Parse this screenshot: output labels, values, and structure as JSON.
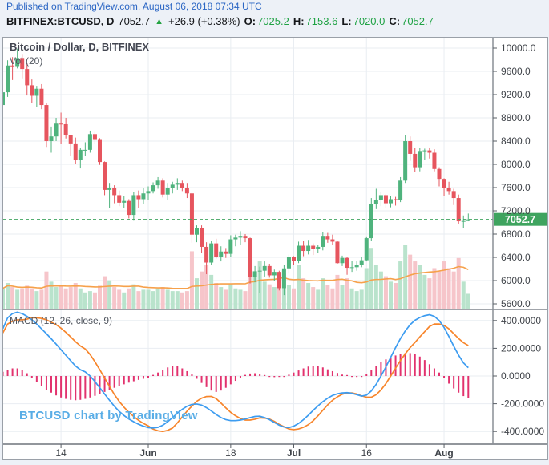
{
  "header": {
    "published": "Published on TradingView.com, August 06, 2018 07:34 UTC",
    "symbol": "BITFINEX:BTCUSD, D",
    "last_price": "7052.7",
    "direction_icon": "▲",
    "change": "+26.9 (+0.38%)",
    "ohlc": [
      {
        "label": "O:",
        "value": "7025.2"
      },
      {
        "label": "H:",
        "value": "7153.6"
      },
      {
        "label": "L:",
        "value": "7020.0"
      },
      {
        "label": "C:",
        "value": "7052.7"
      }
    ]
  },
  "chart": {
    "title": "Bitcoin / Dollar, D, BITFINEX",
    "vol_label": "Vol (20)",
    "macd_label": "MACD (12, 26, close, 9)",
    "watermark": "BTCUSD chart by TradingView"
  },
  "chart_data": {
    "type": "candlestick",
    "title": "Bitcoin / Dollar, D, BITFINEX",
    "exchange": "BITFINEX",
    "interval": "D",
    "last_price": 7052.7,
    "price_axis": {
      "ticks": [
        10000,
        9600,
        9200,
        8800,
        8400,
        8000,
        7600,
        7200,
        6800,
        6400,
        6000,
        5600
      ],
      "ylim": [
        5500,
        10180
      ],
      "format_decimals": 1
    },
    "macd_axis": {
      "ticks": [
        400,
        200,
        0,
        -200,
        -400
      ],
      "ylim": [
        -490,
        460
      ],
      "format_decimals": 4
    },
    "time_ticks": [
      {
        "day": 12,
        "label": "14",
        "bold": false
      },
      {
        "day": 30,
        "label": "Jun",
        "bold": true
      },
      {
        "day": 47,
        "label": "18",
        "bold": false
      },
      {
        "day": 60,
        "label": "Jul",
        "bold": true
      },
      {
        "day": 75,
        "label": "16",
        "bold": false
      },
      {
        "day": 91,
        "label": "Aug",
        "bold": true
      }
    ],
    "candles": [
      [
        9020,
        9280,
        8920,
        9240
      ],
      [
        9240,
        9790,
        9160,
        9700
      ],
      [
        9700,
        9845,
        9450,
        9690
      ],
      [
        9690,
        9990,
        9650,
        9830
      ],
      [
        9830,
        9900,
        9480,
        9640
      ],
      [
        9640,
        9750,
        9185,
        9360
      ],
      [
        9360,
        9460,
        9050,
        9180
      ],
      [
        9180,
        9350,
        8980,
        9300
      ],
      [
        9300,
        9380,
        8950,
        9020
      ],
      [
        9020,
        9060,
        8300,
        8400
      ],
      [
        8400,
        8650,
        8200,
        8480
      ],
      [
        8480,
        8800,
        8400,
        8700
      ],
      [
        8700,
        8890,
        8355,
        8690
      ],
      [
        8690,
        8800,
        8445,
        8500
      ],
      [
        8500,
        8510,
        8150,
        8360
      ],
      [
        8360,
        8460,
        8010,
        8080
      ],
      [
        8080,
        8290,
        7930,
        8250
      ],
      [
        8250,
        8380,
        8150,
        8250
      ],
      [
        8250,
        8580,
        8200,
        8520
      ],
      [
        8520,
        8560,
        8350,
        8420
      ],
      [
        8420,
        8450,
        7990,
        8040
      ],
      [
        8040,
        8050,
        7470,
        7560
      ],
      [
        7560,
        7680,
        7250,
        7590
      ],
      [
        7590,
        7640,
        7330,
        7470
      ],
      [
        7470,
        7550,
        7280,
        7340
      ],
      [
        7340,
        7450,
        7250,
        7370
      ],
      [
        7370,
        7400,
        7070,
        7130
      ],
      [
        7130,
        7520,
        7030,
        7470
      ],
      [
        7470,
        7550,
        7250,
        7400
      ],
      [
        7400,
        7600,
        7320,
        7500
      ],
      [
        7500,
        7620,
        7380,
        7540
      ],
      [
        7540,
        7690,
        7500,
        7640
      ],
      [
        7640,
        7780,
        7580,
        7720
      ],
      [
        7720,
        7760,
        7430,
        7480
      ],
      [
        7480,
        7680,
        7390,
        7600
      ],
      [
        7600,
        7700,
        7500,
        7650
      ],
      [
        7650,
        7760,
        7560,
        7680
      ],
      [
        7680,
        7720,
        7540,
        7600
      ],
      [
        7600,
        7680,
        7420,
        7500
      ],
      [
        7500,
        7510,
        6650,
        6790
      ],
      [
        6790,
        6950,
        6660,
        6900
      ],
      [
        6900,
        6950,
        6480,
        6580
      ],
      [
        6580,
        6660,
        6110,
        6310
      ],
      [
        6310,
        6690,
        6270,
        6640
      ],
      [
        6640,
        6720,
        6380,
        6400
      ],
      [
        6400,
        6590,
        6330,
        6500
      ],
      [
        6500,
        6560,
        6390,
        6460
      ],
      [
        6460,
        6780,
        6410,
        6710
      ],
      [
        6710,
        6790,
        6590,
        6740
      ],
      [
        6740,
        6850,
        6620,
        6770
      ],
      [
        6770,
        6800,
        6660,
        6730
      ],
      [
        6730,
        6740,
        5950,
        6060
      ],
      [
        6060,
        6250,
        5970,
        6160
      ],
      [
        6160,
        6240,
        5780,
        6170
      ],
      [
        6170,
        6330,
        6070,
        6250
      ],
      [
        6250,
        6290,
        6050,
        6090
      ],
      [
        6090,
        6190,
        5990,
        6150
      ],
      [
        6150,
        6170,
        5830,
        5870
      ],
      [
        5870,
        6270,
        5750,
        6210
      ],
      [
        6210,
        6450,
        6120,
        6400
      ],
      [
        6400,
        6420,
        6270,
        6340
      ],
      [
        6340,
        6670,
        6300,
        6600
      ],
      [
        6600,
        6680,
        6420,
        6510
      ],
      [
        6510,
        6700,
        6450,
        6600
      ],
      [
        6600,
        6640,
        6440,
        6550
      ],
      [
        6550,
        6620,
        6470,
        6580
      ],
      [
        6580,
        6830,
        6520,
        6770
      ],
      [
        6770,
        6820,
        6650,
        6710
      ],
      [
        6710,
        6790,
        6610,
        6670
      ],
      [
        6670,
        6680,
        6290,
        6300
      ],
      [
        6300,
        6430,
        6250,
        6390
      ],
      [
        6390,
        6400,
        6100,
        6220
      ],
      [
        6220,
        6340,
        6150,
        6230
      ],
      [
        6230,
        6330,
        6170,
        6270
      ],
      [
        6270,
        6400,
        6230,
        6350
      ],
      [
        6350,
        6760,
        6330,
        6730
      ],
      [
        6730,
        7420,
        6680,
        7320
      ],
      [
        7320,
        7580,
        7230,
        7380
      ],
      [
        7380,
        7530,
        7280,
        7470
      ],
      [
        7470,
        7490,
        7250,
        7330
      ],
      [
        7330,
        7450,
        7260,
        7400
      ],
      [
        7400,
        7440,
        7290,
        7390
      ],
      [
        7390,
        7780,
        7350,
        7720
      ],
      [
        7720,
        8500,
        7680,
        8400
      ],
      [
        8400,
        8480,
        8060,
        8180
      ],
      [
        8180,
        8280,
        7870,
        7950
      ],
      [
        7950,
        8290,
        7880,
        8230
      ],
      [
        8230,
        8270,
        8080,
        8240
      ],
      [
        8240,
        8290,
        8100,
        8200
      ],
      [
        8200,
        8260,
        7880,
        7920
      ],
      [
        7920,
        7950,
        7620,
        7750
      ],
      [
        7750,
        7760,
        7450,
        7600
      ],
      [
        7600,
        7700,
        7480,
        7540
      ],
      [
        7540,
        7580,
        7300,
        7420
      ],
      [
        7420,
        7480,
        6980,
        7020
      ],
      [
        7020,
        7120,
        6900,
        7025
      ],
      [
        7025.2,
        7153.6,
        7020.0,
        7052.7
      ]
    ],
    "volume": [
      30,
      38,
      32,
      28,
      30,
      34,
      30,
      26,
      28,
      55,
      40,
      32,
      35,
      30,
      32,
      38,
      30,
      24,
      26,
      24,
      34,
      48,
      42,
      32,
      28,
      24,
      30,
      36,
      26,
      28,
      28,
      26,
      30,
      32,
      28,
      26,
      26,
      24,
      26,
      85,
      45,
      55,
      65,
      50,
      38,
      32,
      28,
      36,
      30,
      28,
      26,
      75,
      48,
      70,
      40,
      36,
      32,
      50,
      52,
      35,
      30,
      65,
      45,
      38,
      32,
      28,
      45,
      35,
      30,
      50,
      35,
      45,
      30,
      26,
      28,
      60,
      90,
      65,
      55,
      48,
      40,
      38,
      70,
      95,
      80,
      70,
      65,
      50,
      45,
      60,
      55,
      70,
      60,
      55,
      75,
      40,
      22
    ],
    "vol_ma_length": 20,
    "macd": [
      340,
      420,
      450,
      460,
      450,
      430,
      405,
      375,
      340,
      305,
      268,
      230,
      190,
      150,
      110,
      72,
      45,
      30,
      0,
      -40,
      -85,
      -130,
      -175,
      -218,
      -255,
      -285,
      -310,
      -330,
      -348,
      -362,
      -372,
      -375,
      -370,
      -355,
      -330,
      -300,
      -268,
      -240,
      -218,
      -205,
      -202,
      -210,
      -228,
      -252,
      -278,
      -300,
      -315,
      -322,
      -322,
      -318,
      -310,
      -300,
      -292,
      -290,
      -300,
      -315,
      -335,
      -355,
      -368,
      -372,
      -362,
      -342,
      -315,
      -283,
      -248,
      -215,
      -185,
      -160,
      -140,
      -128,
      -122,
      -120,
      -125,
      -135,
      -145,
      -138,
      -108,
      -60,
      0,
      65,
      135,
      205,
      270,
      325,
      370,
      402,
      422,
      435,
      442,
      430,
      400,
      350,
      285,
      215,
      150,
      95,
      60
    ],
    "signal": [
      310,
      375,
      395,
      405,
      405,
      410,
      420,
      420,
      415,
      405,
      388,
      370,
      345,
      315,
      282,
      247,
      217,
      195,
      155,
      103,
      45,
      -15,
      -75,
      -133,
      -183,
      -225,
      -262,
      -292,
      -320,
      -342,
      -360,
      -383,
      -395,
      -400,
      -392,
      -375,
      -338,
      -295,
      -253,
      -217,
      -182,
      -160,
      -148,
      -147,
      -163,
      -195,
      -230,
      -262,
      -287,
      -306,
      -318,
      -318,
      -312,
      -302,
      -304,
      -311,
      -327,
      -349,
      -366,
      -382,
      -387,
      -382,
      -370,
      -351,
      -323,
      -287,
      -247,
      -208,
      -175,
      -150,
      -132,
      -122,
      -122,
      -130,
      -143,
      -153,
      -153,
      -135,
      -100,
      -55,
      0,
      57,
      112,
      160,
      205,
      242,
      282,
      320,
      357,
      375,
      375,
      365,
      340,
      305,
      270,
      240,
      220
    ],
    "colors": {
      "up": "#4fb37d",
      "down": "#e6555e",
      "vol_up": "#b9e3cc",
      "vol_down": "#f6c5ca",
      "vol_ma": "#f6a14b",
      "macd_line": "#3d9cf0",
      "signal_line": "#f7852b",
      "histogram": "#e2326e",
      "last_price_line": "#3fa45f",
      "grid": "#e9edf2",
      "axis_text": "#40444a",
      "separator": "#80858d"
    },
    "legend_position": "top-left",
    "grid": true
  }
}
